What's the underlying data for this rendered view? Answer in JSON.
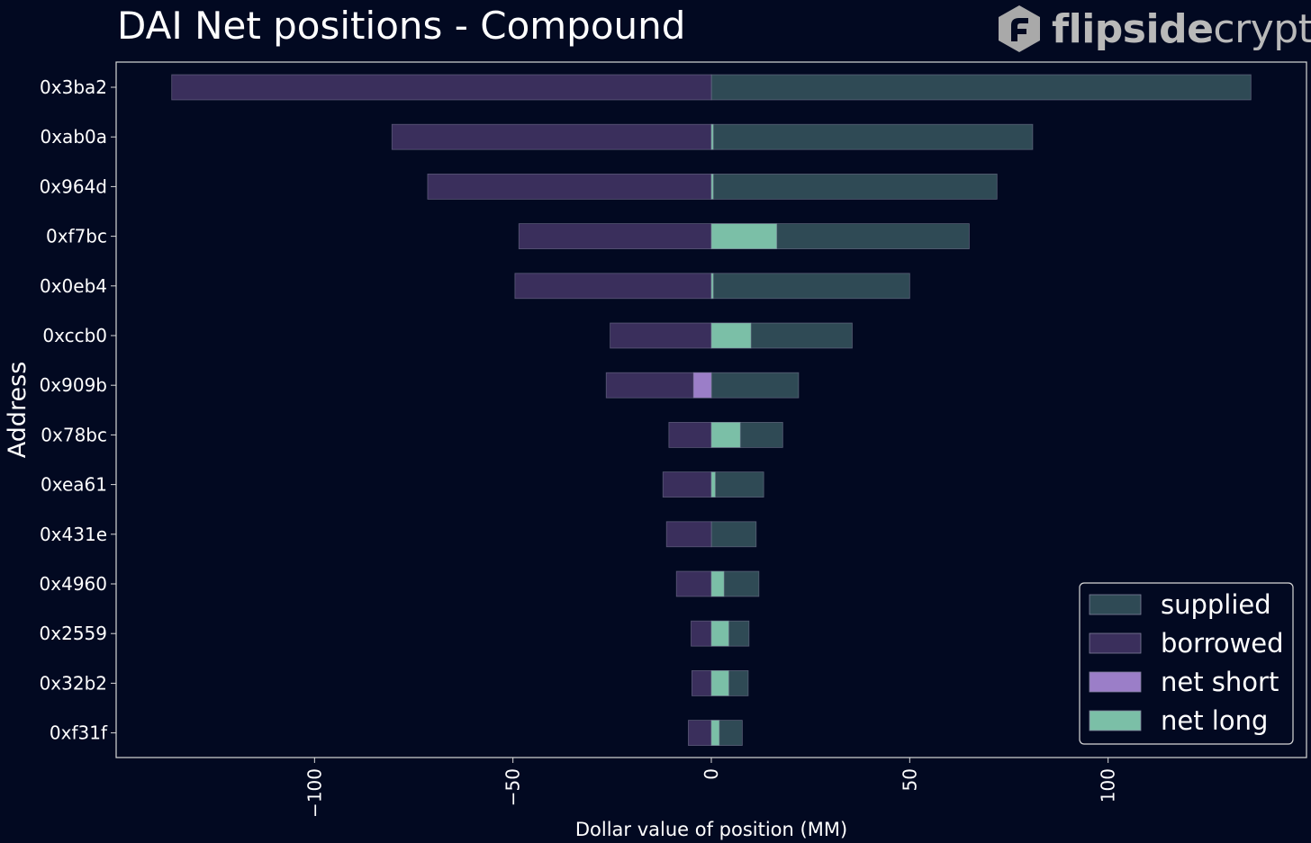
{
  "title": "DAI Net positions - Compound",
  "logo": {
    "bold_text": "flipside",
    "light_text": "crypto",
    "icon": "flipside-logo-icon"
  },
  "colors": {
    "background": "#020921",
    "supplied": "#2f4a55",
    "borrowed": "#3a2f5c",
    "net_short": "#9b7ec8",
    "net_long": "#7bbfa7",
    "axis": "#d8d8d8"
  },
  "chart_data": {
    "type": "bar",
    "orientation": "horizontal",
    "title": "DAI Net positions - Compound",
    "xlabel": "Dollar value of position (MM)",
    "ylabel": "Address",
    "xlim": [
      -150,
      150
    ],
    "xticks": [
      -100,
      -50,
      0,
      50,
      100
    ],
    "xtick_labels": [
      "−100",
      "−50",
      "0",
      "50",
      "100"
    ],
    "categories": [
      "0x3ba2",
      "0xab0a",
      "0x964d",
      "0xf7bc",
      "0x0eb4",
      "0xccb0",
      "0x909b",
      "0x78bc",
      "0xea61",
      "0x431e",
      "0x4960",
      "0x2559",
      "0x32b2",
      "0xf31f"
    ],
    "series": [
      {
        "name": "supplied",
        "values": [
          136,
          81,
          72,
          65,
          50,
          35.5,
          22,
          18,
          13.2,
          11.3,
          12,
          9.5,
          9.3,
          7.8
        ]
      },
      {
        "name": "borrowed",
        "values": [
          -136,
          -80.5,
          -71.5,
          -48.5,
          -49.5,
          -25.5,
          -26.5,
          -10.7,
          -12.2,
          -11.3,
          -8.8,
          -5.1,
          -4.9,
          -5.8
        ]
      },
      {
        "name": "net short",
        "values": [
          0,
          0,
          0,
          0,
          0,
          0,
          -4.5,
          0,
          0,
          0,
          0,
          0,
          0,
          0
        ]
      },
      {
        "name": "net long",
        "values": [
          0,
          0.5,
          0.5,
          16.5,
          0.5,
          10,
          0,
          7.3,
          1,
          0,
          3.2,
          4.4,
          4.4,
          2
        ]
      }
    ],
    "legend": {
      "position": "bottom-right",
      "entries": [
        "supplied",
        "borrowed",
        "net short",
        "net long"
      ]
    },
    "grid": false
  }
}
